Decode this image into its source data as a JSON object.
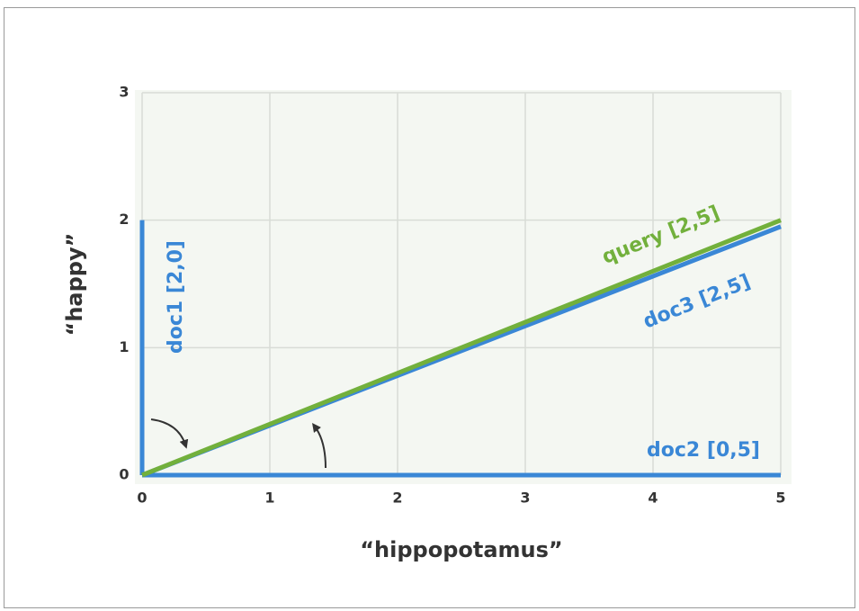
{
  "chart_data": {
    "type": "line",
    "xlabel": "“hippopotamus”",
    "ylabel": "“happy”",
    "xlim": [
      0,
      5
    ],
    "ylim": [
      0,
      3
    ],
    "xticks": [
      0,
      1,
      2,
      3,
      4,
      5
    ],
    "yticks": [
      0,
      1,
      2,
      3
    ],
    "grid": true,
    "series": [
      {
        "name": "doc1 [2,0]",
        "color": "#3a87d6",
        "x": [
          0,
          0
        ],
        "values": [
          0,
          2
        ]
      },
      {
        "name": "doc2 [0,5]",
        "color": "#3a87d6",
        "x": [
          0,
          5
        ],
        "values": [
          0,
          0
        ]
      },
      {
        "name": "doc3 [2,5]",
        "color": "#3a87d6",
        "x": [
          0,
          5
        ],
        "values": [
          0,
          1.95
        ]
      },
      {
        "name": "query [2,5]",
        "color": "#72b03c",
        "x": [
          0,
          5
        ],
        "values": [
          0,
          2
        ]
      }
    ]
  }
}
